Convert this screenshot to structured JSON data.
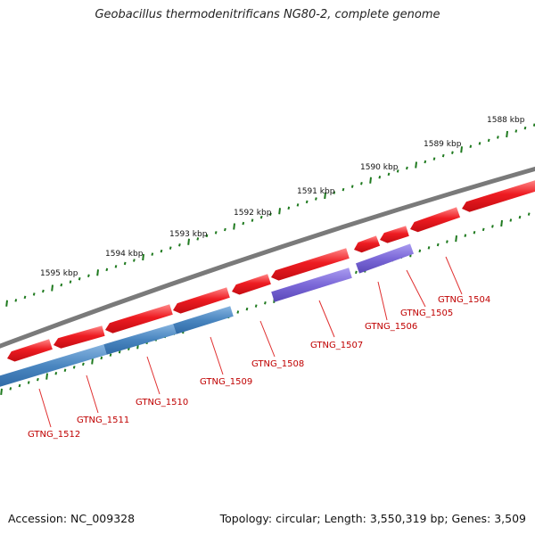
{
  "title": "Geobacillus thermodenitrificans NG80-2, complete genome",
  "footer": {
    "accession": "Accession: NC_009328",
    "summary": "Topology: circular; Length: 3,550,319 bp; Genes: 3,509"
  },
  "colors": {
    "backbone": "#7a7a7a",
    "forward_gene": "#e8121a",
    "reverse_gene_blue": "#4a86c0",
    "reverse_gene_purple": "#7b68d8",
    "tick": "#1f7a1f",
    "gene_label": "#c00000"
  },
  "scale_labels": [
    "1588 kbp",
    "1589 kbp",
    "1590 kbp",
    "1591 kbp",
    "1592 kbp",
    "1593 kbp",
    "1594 kbp",
    "1595 kbp"
  ],
  "gene_labels": [
    "GTNG_1504",
    "GTNG_1505",
    "GTNG_1506",
    "GTNG_1507",
    "GTNG_1508",
    "GTNG_1509",
    "GTNG_1510",
    "GTNG_1511",
    "GTNG_1512"
  ]
}
